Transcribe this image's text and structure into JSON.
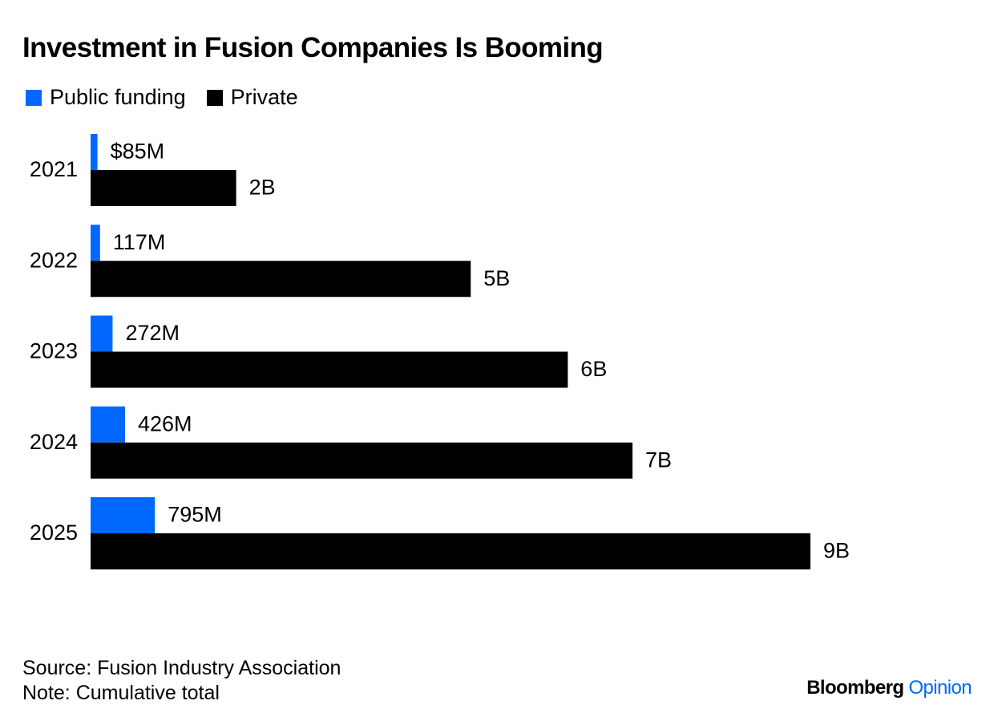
{
  "title": "Investment in Fusion Companies Is Booming",
  "colors": {
    "public": "#0068FF",
    "private": "#000000",
    "text": "#000000"
  },
  "chart_data": {
    "type": "bar",
    "orientation": "horizontal",
    "title": "Investment in Fusion Companies Is Booming",
    "categories": [
      "2021",
      "2022",
      "2023",
      "2024",
      "2025"
    ],
    "series": [
      {
        "name": "Public funding",
        "values": [
          85,
          117,
          272,
          426,
          795
        ],
        "unit": "$M",
        "labels": [
          "$85M",
          "117M",
          "272M",
          "426M",
          "795M"
        ]
      },
      {
        "name": "Private",
        "values": [
          1800,
          4700,
          5900,
          6700,
          8900
        ],
        "unit": "$M",
        "labels": [
          "2B",
          "5B",
          "6B",
          "7B",
          "9B"
        ]
      }
    ],
    "xlim": [
      0,
      8900
    ],
    "grid": false,
    "legend_position": "top-left",
    "note": "Cumulative total"
  },
  "footer": {
    "source": "Source: Fusion Industry Association",
    "note": "Note: Cumulative total"
  },
  "brand": {
    "part1": "Bloomberg",
    "part2": "Opinion"
  }
}
